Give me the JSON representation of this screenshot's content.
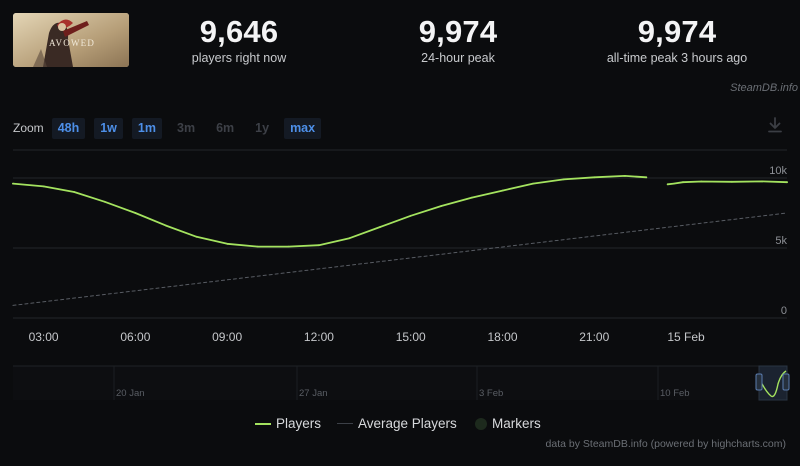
{
  "game": {
    "image_alt_text": "AVOWED"
  },
  "stats": [
    {
      "value": "9,646",
      "label": "players right now"
    },
    {
      "value": "9,974",
      "label": "24-hour peak"
    },
    {
      "value": "9,974",
      "label": "all-time peak 3 hours ago"
    }
  ],
  "credit_top": "SteamDB.info",
  "zoom": {
    "label": "Zoom",
    "buttons": [
      {
        "label": "48h",
        "active": true
      },
      {
        "label": "1w",
        "active": true
      },
      {
        "label": "1m",
        "active": true
      },
      {
        "label": "3m",
        "active": false
      },
      {
        "label": "6m",
        "active": false
      },
      {
        "label": "1y",
        "active": false
      },
      {
        "label": "max",
        "active": true
      }
    ]
  },
  "legend": {
    "players": "Players",
    "average": "Average Players",
    "markers": "Markers"
  },
  "credit_bottom": "data by SteamDB.info (powered by highcharts.com)",
  "colors": {
    "players": "#a4e35f",
    "average": "#585c63",
    "accent": "#4d8fe8",
    "grid": "#23262b",
    "background": "#0b0c0e"
  },
  "chart_data": {
    "type": "line",
    "x_tick_labels": [
      "03:00",
      "06:00",
      "09:00",
      "12:00",
      "15:00",
      "18:00",
      "21:00",
      "15 Feb"
    ],
    "y_tick_labels": [
      "0",
      "5k",
      "10k"
    ],
    "ylim": [
      0,
      12000
    ],
    "series": [
      {
        "name": "Players",
        "hours": [
          2.0,
          3.0,
          4.0,
          5.0,
          6.0,
          7.0,
          8.0,
          9.0,
          10.0,
          11.0,
          12.0,
          13.0,
          14.0,
          15.0,
          16.0,
          17.0,
          18.0,
          19.0,
          20.0,
          21.0,
          22.0,
          22.7
        ],
        "values": [
          9600,
          9400,
          9000,
          8300,
          7500,
          6600,
          5800,
          5300,
          5100,
          5100,
          5200,
          5700,
          6500,
          7300,
          8000,
          8600,
          9100,
          9600,
          9900,
          10050,
          10150,
          10050
        ]
      },
      {
        "name": "Players",
        "hours": [
          23.4,
          23.6,
          23.9,
          24.5,
          25.5,
          26.5,
          27.3
        ],
        "values": [
          9550,
          9600,
          9700,
          9750,
          9730,
          9760,
          9700
        ]
      },
      {
        "name": "Average Players",
        "hours": [
          2.0,
          27.3
        ],
        "values": [
          900,
          7500
        ]
      }
    ],
    "navigator": {
      "labels": [
        "20 Jan",
        "27 Jan",
        "3 Feb",
        "10 Feb"
      ]
    }
  }
}
